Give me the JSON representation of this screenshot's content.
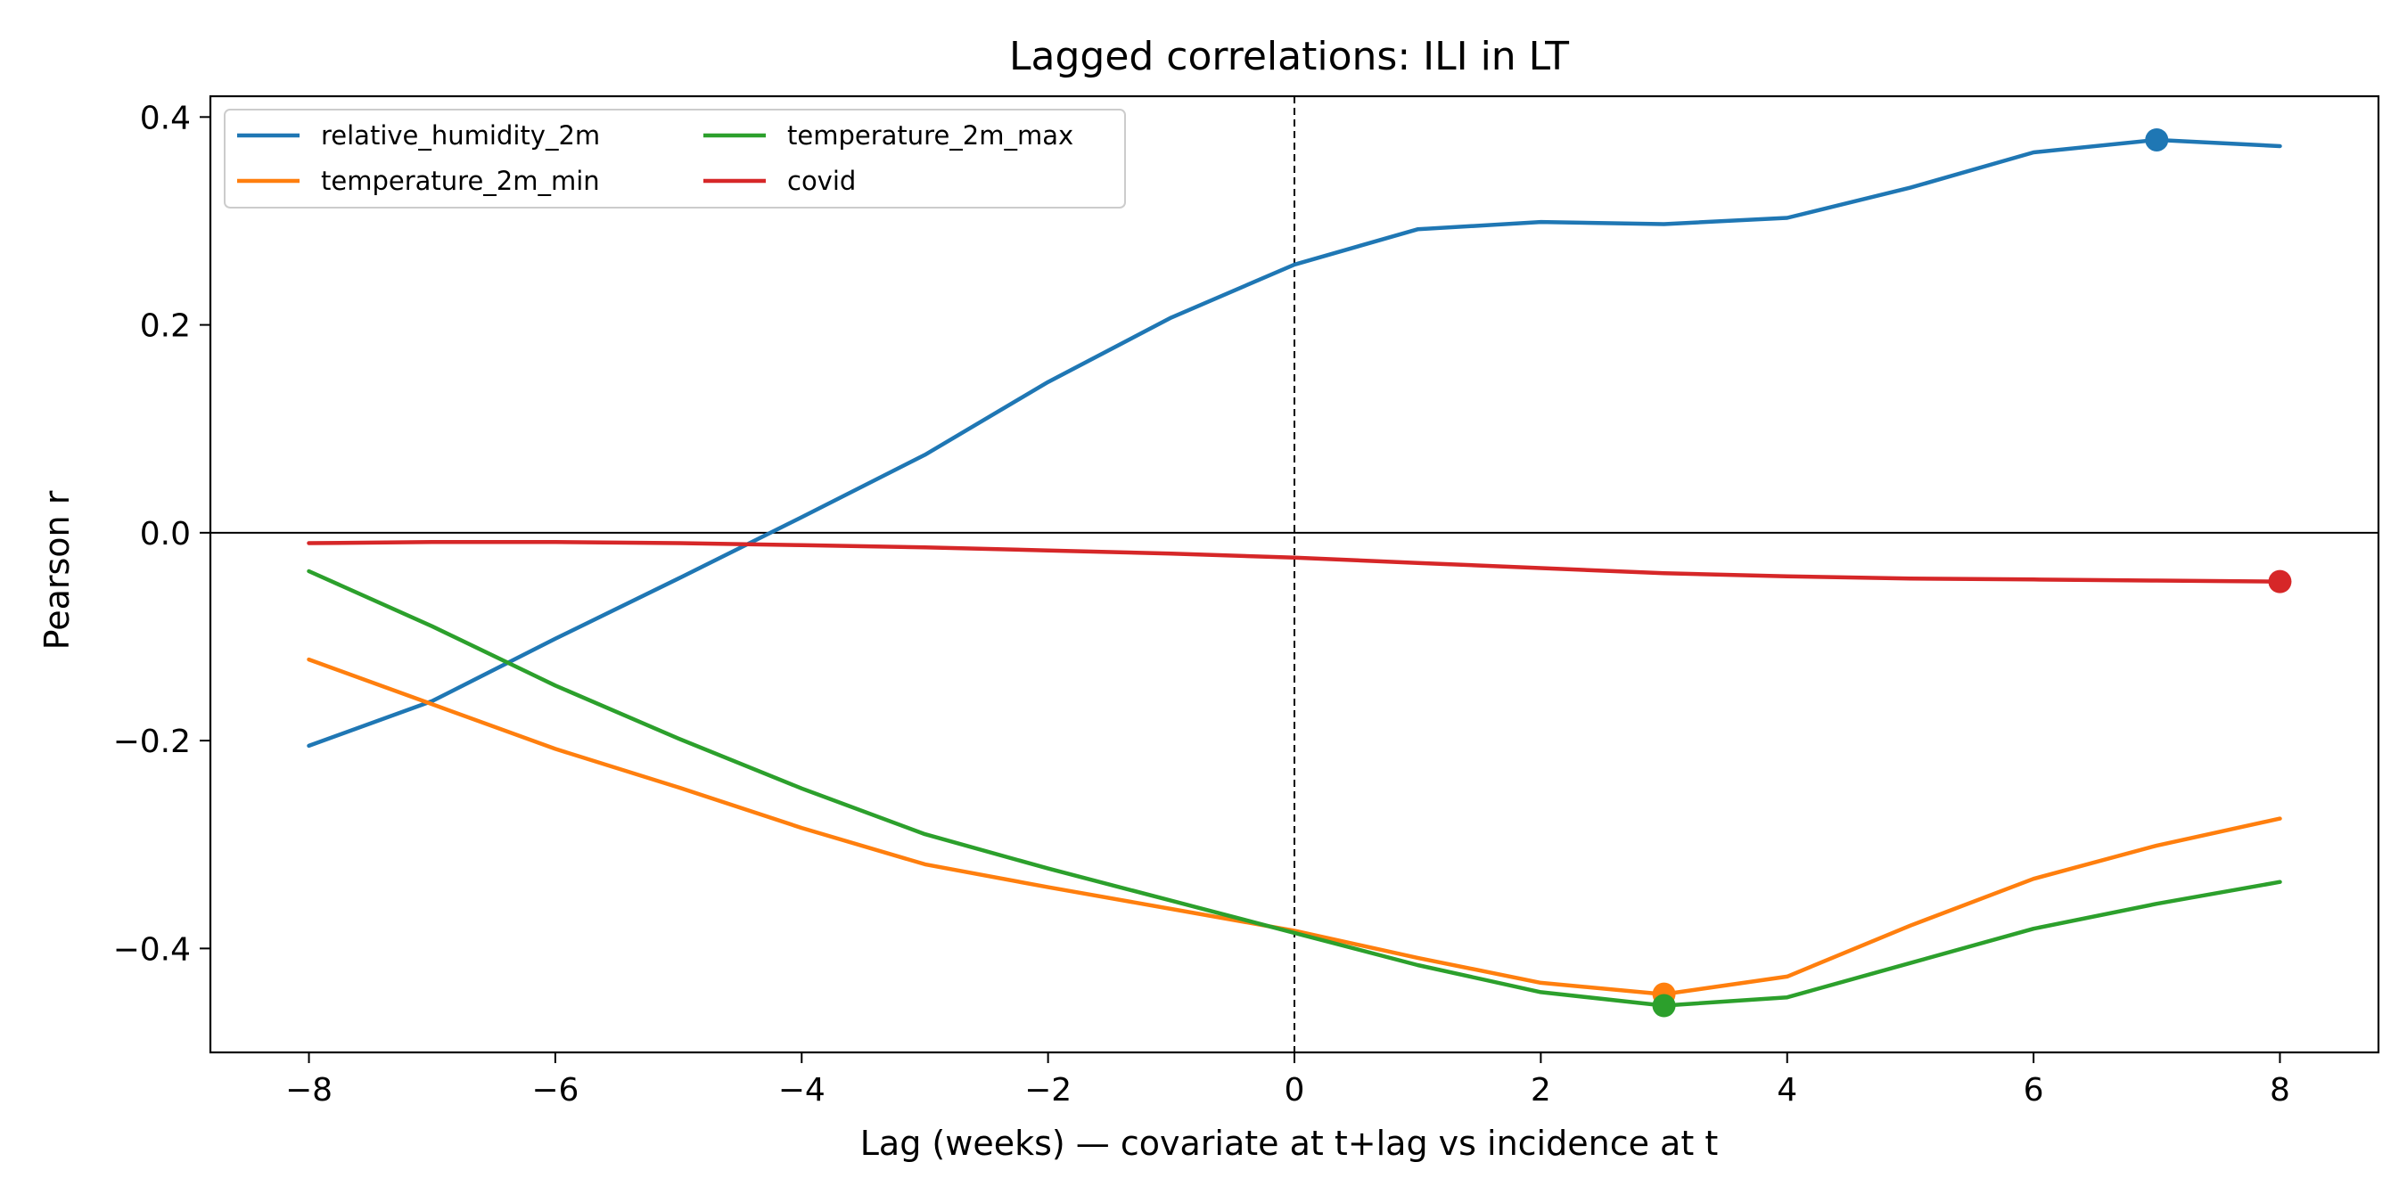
{
  "chart_data": {
    "type": "line",
    "title": "Lagged correlations: ILI in LT",
    "xlabel": "Lag (weeks) — covariate at t+lag vs incidence at t",
    "ylabel": "Pearson r",
    "xlim": [
      -8.8,
      8.8
    ],
    "ylim": [
      -0.5,
      0.42
    ],
    "xticks": [
      {
        "value": -8,
        "label": "−8"
      },
      {
        "value": -6,
        "label": "−6"
      },
      {
        "value": -4,
        "label": "−4"
      },
      {
        "value": -2,
        "label": "−2"
      },
      {
        "value": 0,
        "label": "0"
      },
      {
        "value": 2,
        "label": "2"
      },
      {
        "value": 4,
        "label": "4"
      },
      {
        "value": 6,
        "label": "6"
      },
      {
        "value": 8,
        "label": "8"
      }
    ],
    "yticks": [
      {
        "value": 0.4,
        "label": "0.4"
      },
      {
        "value": 0.2,
        "label": "0.2"
      },
      {
        "value": 0.0,
        "label": "0.0"
      },
      {
        "value": -0.2,
        "label": "−0.2"
      },
      {
        "value": -0.4,
        "label": "−0.4"
      }
    ],
    "x": [
      -8,
      -7,
      -6,
      -5,
      -4,
      -3,
      -2,
      -1,
      0,
      1,
      2,
      3,
      4,
      5,
      6,
      7,
      8
    ],
    "series": [
      {
        "name": "relative_humidity_2m",
        "color": "#1f77b4",
        "values": [
          -0.205,
          -0.162,
          -0.102,
          -0.044,
          0.015,
          0.075,
          0.145,
          0.207,
          0.258,
          0.292,
          0.299,
          0.297,
          0.303,
          0.332,
          0.366,
          0.378,
          0.372
        ],
        "marker_index": 15
      },
      {
        "name": "temperature_2m_min",
        "color": "#ff7f0e",
        "values": [
          -0.122,
          -0.165,
          -0.208,
          -0.245,
          -0.284,
          -0.319,
          -0.341,
          -0.362,
          -0.383,
          -0.409,
          -0.433,
          -0.444,
          -0.427,
          -0.378,
          -0.333,
          -0.301,
          -0.275
        ],
        "marker_index": 11
      },
      {
        "name": "temperature_2m_max",
        "color": "#2ca02c",
        "values": [
          -0.037,
          -0.09,
          -0.147,
          -0.198,
          -0.246,
          -0.29,
          -0.323,
          -0.354,
          -0.385,
          -0.416,
          -0.442,
          -0.455,
          -0.447,
          -0.414,
          -0.381,
          -0.357,
          -0.336
        ],
        "marker_index": 11
      },
      {
        "name": "covid",
        "color": "#d62728",
        "values": [
          -0.01,
          -0.009,
          -0.009,
          -0.01,
          -0.012,
          -0.014,
          -0.017,
          -0.02,
          -0.024,
          -0.029,
          -0.034,
          -0.039,
          -0.042,
          -0.044,
          -0.045,
          -0.046,
          -0.047
        ],
        "marker_index": 16
      }
    ],
    "reference_lines": {
      "horizontal_at": 0.0,
      "vertical_dashed_at": 0
    },
    "legend": {
      "placement": "top-left",
      "columns": 2
    },
    "grid": false
  }
}
